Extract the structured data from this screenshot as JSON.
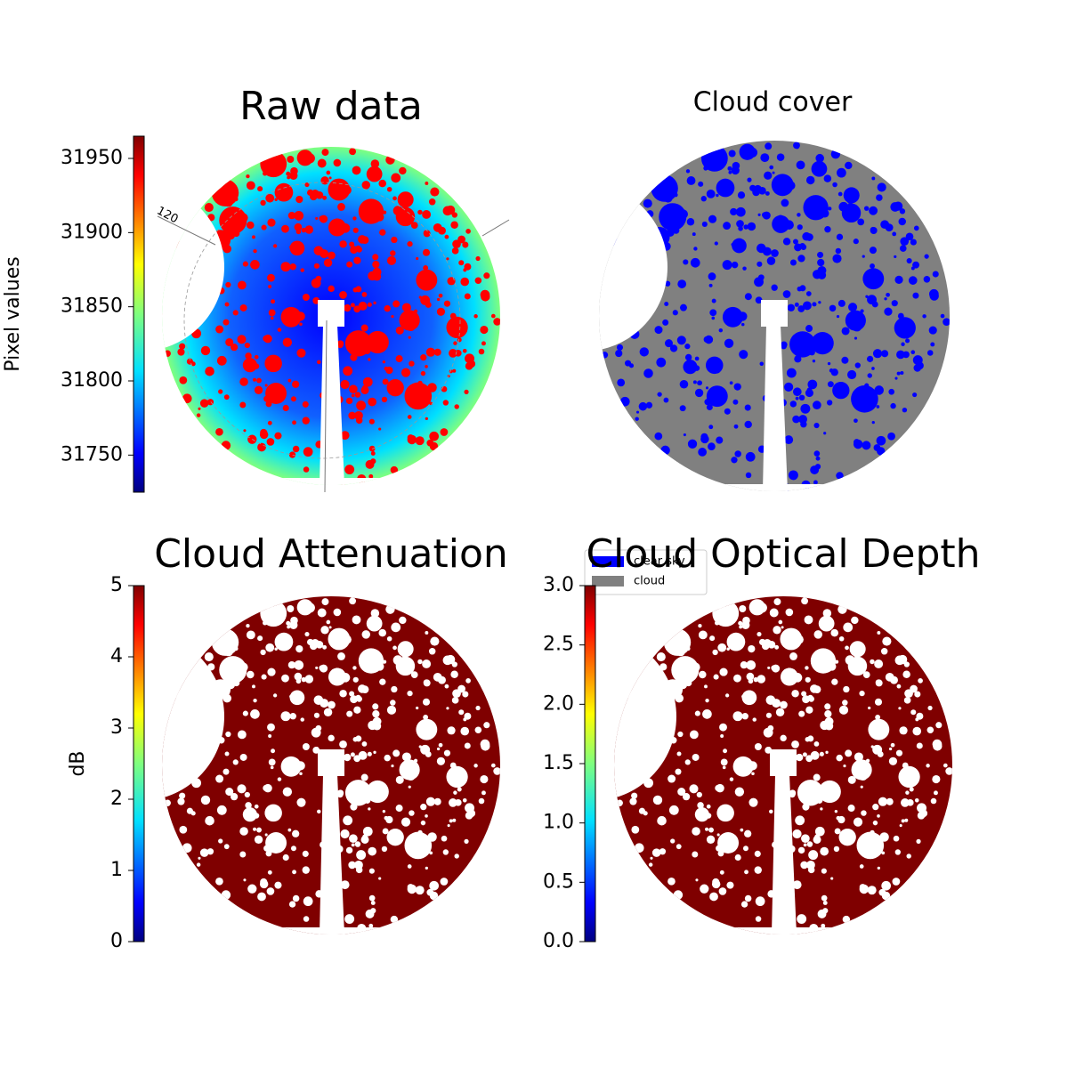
{
  "chart_data": [
    {
      "type": "heatmap",
      "title": "Raw data",
      "cmap": "jet",
      "colorbar_label": "Pixel values",
      "ylim": [
        31725,
        31965
      ],
      "yticks": [
        31750,
        31800,
        31850,
        31900,
        31950
      ],
      "annotations": [
        "120"
      ]
    },
    {
      "type": "mask",
      "title": "Cloud cover",
      "series": [
        {
          "name": "clear sky",
          "color": "#0000ff"
        },
        {
          "name": "cloud",
          "color": "#808080"
        }
      ]
    },
    {
      "type": "heatmap",
      "title": "Cloud Attenuation",
      "cmap": "jet",
      "colorbar_label": "dB",
      "ylim": [
        0,
        5
      ],
      "yticks": [
        0,
        1,
        2,
        3,
        4,
        5
      ]
    },
    {
      "type": "heatmap",
      "title": "Cloud Optical Depth",
      "cmap": "jet",
      "ylim": [
        0,
        3
      ],
      "yticks": [
        {
          "value": 0,
          "label": "0.0"
        },
        0.5,
        {
          "value": 1,
          "label": "1.0"
        },
        1.5,
        {
          "value": 2,
          "label": "2.0"
        },
        2.5,
        {
          "value": 3,
          "label": "3.0"
        }
      ]
    }
  ]
}
